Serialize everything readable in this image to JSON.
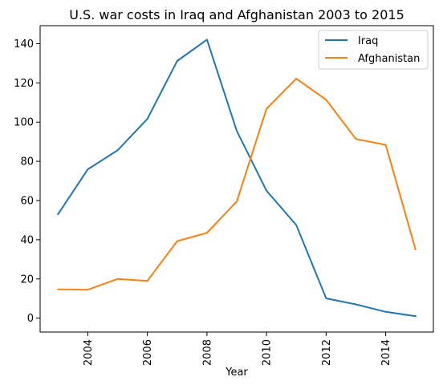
{
  "chart_data": {
    "type": "line",
    "title": "U.S. war costs in Iraq and Afghanistan 2003 to 2015",
    "xlabel": "Year",
    "ylabel": "",
    "x": [
      2003,
      2004,
      2005,
      2006,
      2007,
      2008,
      2009,
      2010,
      2011,
      2012,
      2013,
      2014,
      2015
    ],
    "series": [
      {
        "name": "Iraq",
        "color": "#1f77b4",
        "values": [
          53.0,
          75.9,
          85.6,
          101.6,
          131.2,
          142.1,
          95.5,
          65.0,
          47.5,
          10.1,
          7.0,
          3.2,
          1.0
        ]
      },
      {
        "name": "Afghanistan",
        "color": "#ff7f0e",
        "values": [
          14.7,
          14.5,
          20.0,
          19.0,
          39.3,
          43.5,
          59.5,
          106.8,
          122.2,
          111.4,
          91.4,
          88.4,
          35.1
        ]
      }
    ],
    "xlim": [
      2002.4,
      2015.6
    ],
    "ylim": [
      -7.1,
      149.2
    ],
    "xticks": [
      2004,
      2006,
      2008,
      2010,
      2012,
      2014
    ],
    "xtick_labels": [
      "2004",
      "2006",
      "2008",
      "2010",
      "2012",
      "2014"
    ],
    "xtick_rotation": "vertical",
    "yticks": [
      0,
      20,
      40,
      60,
      80,
      100,
      120,
      140
    ],
    "ytick_labels": [
      "0",
      "20",
      "40",
      "60",
      "80",
      "100",
      "120",
      "140"
    ],
    "grid": false,
    "legend_position": "top-right"
  }
}
